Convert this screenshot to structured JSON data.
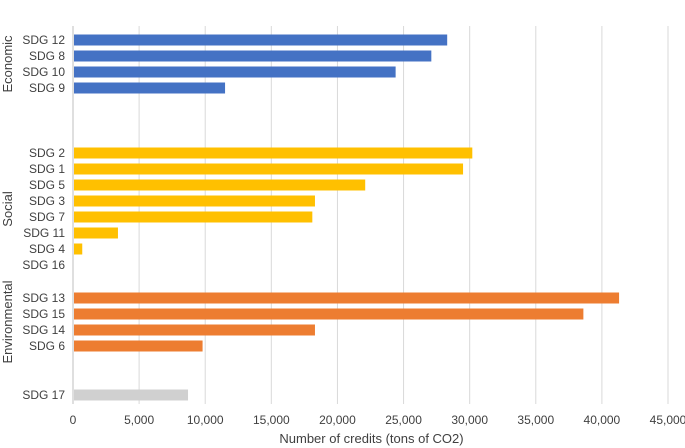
{
  "chart_data": {
    "type": "bar",
    "orientation": "horizontal",
    "xlabel": "Number of credits (tons of CO2)",
    "xlim": [
      0,
      45000
    ],
    "xticks": [
      0,
      5000,
      10000,
      15000,
      20000,
      25000,
      30000,
      35000,
      40000,
      45000
    ],
    "xtick_labels": [
      "0",
      "5,000",
      "10,000",
      "15,000",
      "20,000",
      "25,000",
      "30,000",
      "35,000",
      "40,000",
      "45,000"
    ],
    "grid": "vertical",
    "groups": [
      {
        "name": "Economic",
        "color": "#4472C4",
        "categories": [
          "SDG 12",
          "SDG 8",
          "SDG 10",
          "SDG 9"
        ],
        "values": [
          28300,
          27100,
          24400,
          11500
        ]
      },
      {
        "name": "Social",
        "color": "#FFC000",
        "categories": [
          "SDG 2",
          "SDG 1",
          "SDG 5",
          "SDG 3",
          "SDG 7",
          "SDG 11",
          "SDG 4",
          "SDG 16"
        ],
        "values": [
          30200,
          29500,
          22100,
          18300,
          18100,
          3400,
          700,
          0
        ]
      },
      {
        "name": "Environmental",
        "color": "#ED7D31",
        "categories": [
          "SDG 13",
          "SDG 15",
          "SDG 14",
          "SDG 6"
        ],
        "values": [
          41300,
          38600,
          18300,
          9800
        ]
      },
      {
        "name": "",
        "color": "#D0D0D0",
        "categories": [
          "SDG 17"
        ],
        "values": [
          8700
        ]
      }
    ]
  }
}
